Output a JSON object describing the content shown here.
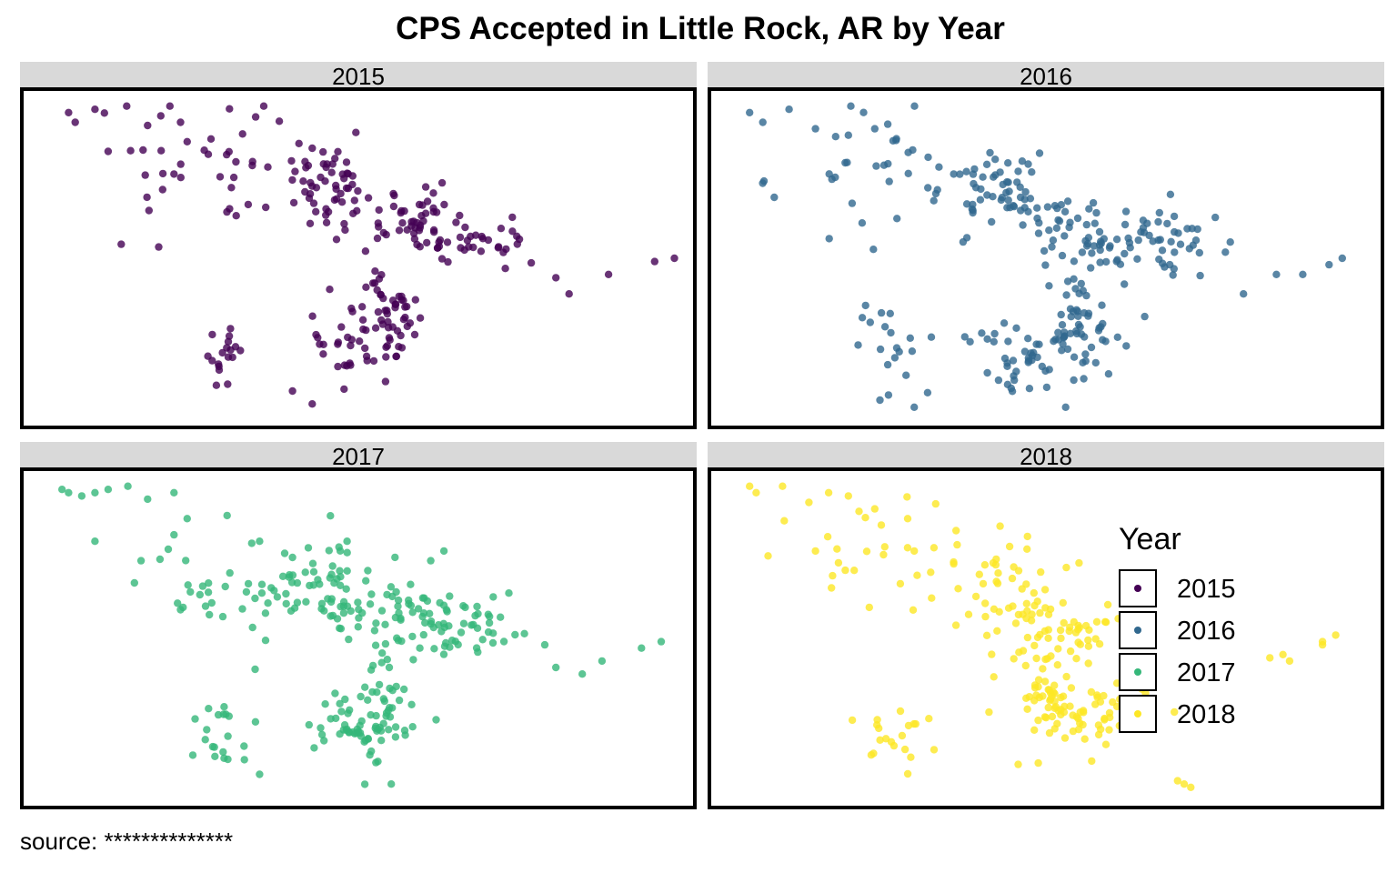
{
  "title": "CPS Accepted in Little Rock, AR by Year",
  "caption": "source: **************",
  "chart_data": {
    "type": "scatter",
    "title": "CPS Accepted in Little Rock, AR by Year",
    "xlabel": "",
    "ylabel": "",
    "facet_by": "Year",
    "grid": false,
    "legend": {
      "title": "Year",
      "position": "right-inside",
      "entries": [
        "2015",
        "2016",
        "2017",
        "2018"
      ]
    },
    "colors": {
      "2015": "#440154",
      "2016": "#31688e",
      "2017": "#35b779",
      "2018": "#fde725"
    },
    "panels": [
      {
        "label": "2015",
        "clusters": [
          {
            "x": 0.45,
            "y": 0.27,
            "sx": 0.035,
            "sy": 0.07,
            "n": 55
          },
          {
            "x": 0.6,
            "y": 0.4,
            "sx": 0.05,
            "sy": 0.05,
            "n": 55
          },
          {
            "x": 0.7,
            "y": 0.45,
            "sx": 0.04,
            "sy": 0.04,
            "n": 25
          },
          {
            "x": 0.5,
            "y": 0.74,
            "sx": 0.04,
            "sy": 0.06,
            "n": 50
          },
          {
            "x": 0.55,
            "y": 0.65,
            "sx": 0.02,
            "sy": 0.06,
            "n": 30
          },
          {
            "x": 0.3,
            "y": 0.78,
            "sx": 0.02,
            "sy": 0.05,
            "n": 18
          },
          {
            "x": 0.25,
            "y": 0.2,
            "sx": 0.08,
            "sy": 0.12,
            "n": 35
          }
        ],
        "extra": [
          [
            0.06,
            0.05
          ],
          [
            0.07,
            0.08
          ],
          [
            0.1,
            0.04
          ],
          [
            0.12,
            0.17
          ],
          [
            0.18,
            0.09
          ],
          [
            0.2,
            0.06
          ],
          [
            0.23,
            0.08
          ],
          [
            0.24,
            0.14
          ],
          [
            0.22,
            0.24
          ],
          [
            0.3,
            0.18
          ],
          [
            0.43,
            0.16
          ],
          [
            0.8,
            0.56
          ],
          [
            0.88,
            0.55
          ],
          [
            0.95,
            0.51
          ],
          [
            0.98,
            0.5
          ],
          [
            0.82,
            0.61
          ],
          [
            0.4,
            0.91
          ],
          [
            0.43,
            0.95
          ]
        ]
      },
      {
        "label": "2016",
        "clusters": [
          {
            "x": 0.44,
            "y": 0.3,
            "sx": 0.05,
            "sy": 0.07,
            "n": 55
          },
          {
            "x": 0.58,
            "y": 0.42,
            "sx": 0.06,
            "sy": 0.06,
            "n": 60
          },
          {
            "x": 0.7,
            "y": 0.45,
            "sx": 0.04,
            "sy": 0.05,
            "n": 30
          },
          {
            "x": 0.5,
            "y": 0.8,
            "sx": 0.05,
            "sy": 0.06,
            "n": 60
          },
          {
            "x": 0.55,
            "y": 0.68,
            "sx": 0.02,
            "sy": 0.08,
            "n": 35
          },
          {
            "x": 0.27,
            "y": 0.78,
            "sx": 0.03,
            "sy": 0.07,
            "n": 20
          },
          {
            "x": 0.25,
            "y": 0.22,
            "sx": 0.08,
            "sy": 0.12,
            "n": 35
          }
        ],
        "extra": [
          [
            0.05,
            0.05
          ],
          [
            0.07,
            0.08
          ],
          [
            0.11,
            0.04
          ],
          [
            0.15,
            0.1
          ],
          [
            0.2,
            0.12
          ],
          [
            0.24,
            0.1
          ],
          [
            0.18,
            0.25
          ],
          [
            0.36,
            0.24
          ],
          [
            0.39,
            0.27
          ],
          [
            0.78,
            0.45
          ],
          [
            0.85,
            0.55
          ],
          [
            0.89,
            0.55
          ],
          [
            0.93,
            0.52
          ],
          [
            0.95,
            0.5
          ],
          [
            0.8,
            0.61
          ],
          [
            0.65,
            0.68
          ],
          [
            0.53,
            0.96
          ],
          [
            0.3,
            0.96
          ]
        ]
      },
      {
        "label": "2017",
        "clusters": [
          {
            "x": 0.44,
            "y": 0.32,
            "sx": 0.04,
            "sy": 0.07,
            "n": 55
          },
          {
            "x": 0.57,
            "y": 0.43,
            "sx": 0.06,
            "sy": 0.05,
            "n": 60
          },
          {
            "x": 0.67,
            "y": 0.46,
            "sx": 0.04,
            "sy": 0.05,
            "n": 30
          },
          {
            "x": 0.5,
            "y": 0.77,
            "sx": 0.04,
            "sy": 0.06,
            "n": 55
          },
          {
            "x": 0.54,
            "y": 0.68,
            "sx": 0.02,
            "sy": 0.08,
            "n": 30
          },
          {
            "x": 0.28,
            "y": 0.78,
            "sx": 0.03,
            "sy": 0.07,
            "n": 20
          },
          {
            "x": 0.3,
            "y": 0.35,
            "sx": 0.06,
            "sy": 0.1,
            "n": 35
          }
        ],
        "extra": [
          [
            0.05,
            0.04
          ],
          [
            0.06,
            0.05
          ],
          [
            0.08,
            0.06
          ],
          [
            0.1,
            0.05
          ],
          [
            0.12,
            0.04
          ],
          [
            0.15,
            0.03
          ],
          [
            0.18,
            0.07
          ],
          [
            0.22,
            0.05
          ],
          [
            0.1,
            0.2
          ],
          [
            0.17,
            0.26
          ],
          [
            0.22,
            0.18
          ],
          [
            0.24,
            0.13
          ],
          [
            0.35,
            0.2
          ],
          [
            0.4,
            0.25
          ],
          [
            0.61,
            0.26
          ],
          [
            0.63,
            0.23
          ],
          [
            0.8,
            0.59
          ],
          [
            0.84,
            0.61
          ],
          [
            0.87,
            0.57
          ],
          [
            0.93,
            0.53
          ],
          [
            0.96,
            0.51
          ],
          [
            0.55,
            0.95
          ],
          [
            0.35,
            0.92
          ]
        ]
      },
      {
        "label": "2018",
        "clusters": [
          {
            "x": 0.44,
            "y": 0.33,
            "sx": 0.05,
            "sy": 0.07,
            "n": 40
          },
          {
            "x": 0.52,
            "y": 0.47,
            "sx": 0.05,
            "sy": 0.06,
            "n": 50
          },
          {
            "x": 0.55,
            "y": 0.73,
            "sx": 0.05,
            "sy": 0.06,
            "n": 60
          },
          {
            "x": 0.5,
            "y": 0.68,
            "sx": 0.02,
            "sy": 0.07,
            "n": 30
          },
          {
            "x": 0.28,
            "y": 0.8,
            "sx": 0.03,
            "sy": 0.06,
            "n": 20
          },
          {
            "x": 0.26,
            "y": 0.26,
            "sx": 0.07,
            "sy": 0.1,
            "n": 25
          }
        ],
        "extra": [
          [
            0.05,
            0.03
          ],
          [
            0.06,
            0.05
          ],
          [
            0.1,
            0.03
          ],
          [
            0.14,
            0.08
          ],
          [
            0.17,
            0.05
          ],
          [
            0.2,
            0.06
          ],
          [
            0.24,
            0.1
          ],
          [
            0.25,
            0.15
          ],
          [
            0.29,
            0.13
          ],
          [
            0.15,
            0.23
          ],
          [
            0.3,
            0.23
          ],
          [
            0.33,
            0.22
          ],
          [
            0.36,
            0.27
          ],
          [
            0.84,
            0.56
          ],
          [
            0.86,
            0.55
          ],
          [
            0.87,
            0.57
          ],
          [
            0.92,
            0.52
          ],
          [
            0.94,
            0.49
          ],
          [
            0.92,
            0.51
          ],
          [
            0.71,
            0.95
          ],
          [
            0.72,
            0.96
          ],
          [
            0.7,
            0.94
          ]
        ]
      }
    ]
  }
}
